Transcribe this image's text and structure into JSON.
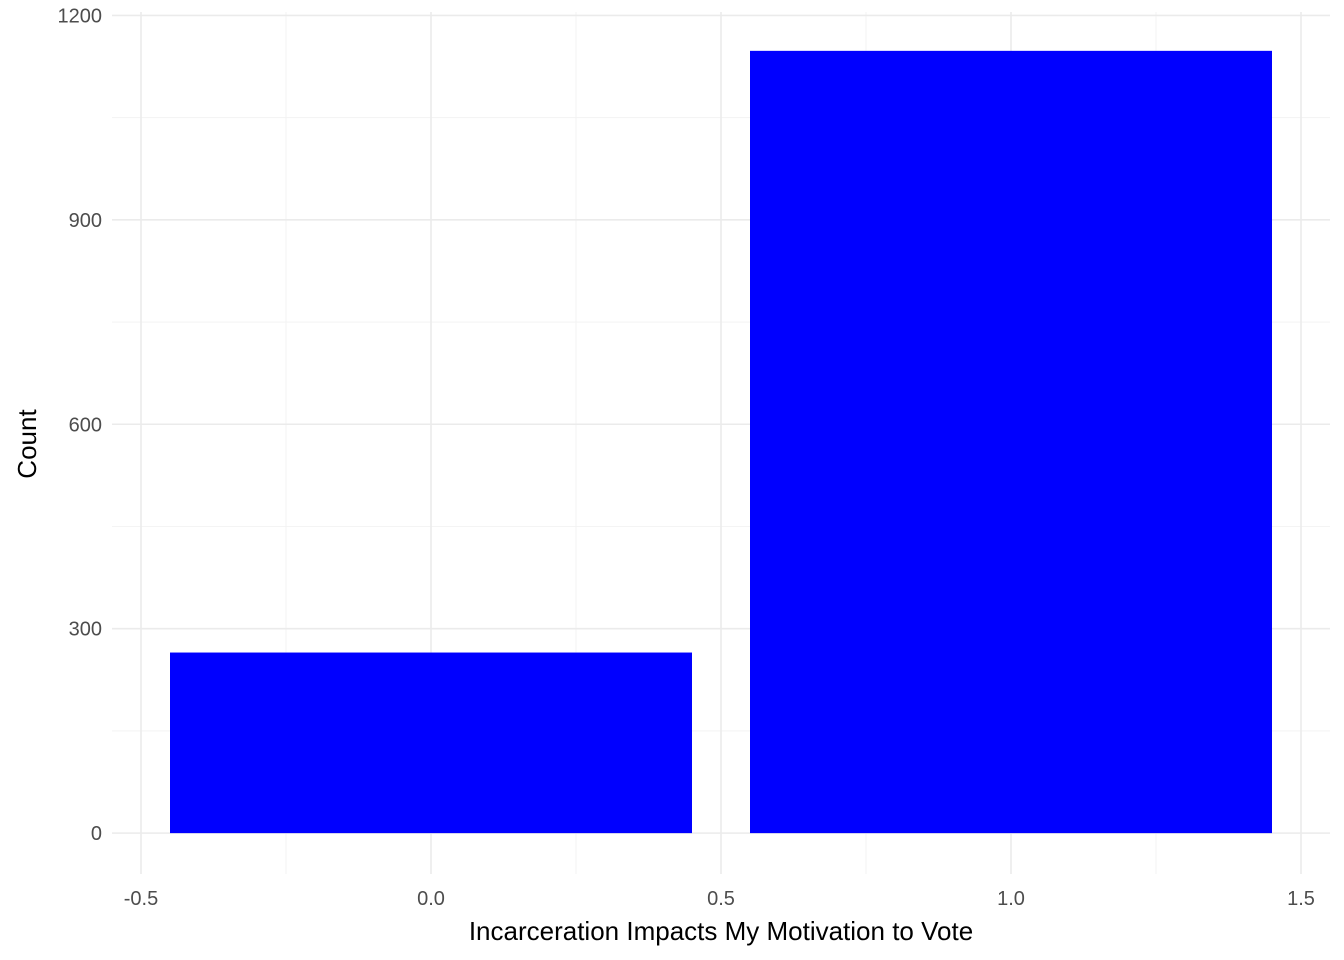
{
  "chart_data": {
    "type": "bar",
    "title": "",
    "xlabel": "Incarceration Impacts My Motivation to Vote",
    "ylabel": "Count",
    "bars": [
      {
        "x": 0,
        "value": 265,
        "width": 0.9
      },
      {
        "x": 1,
        "value": 1148,
        "width": 0.9
      }
    ],
    "bar_color": "#0000ff",
    "xlim": [
      -0.55,
      1.55
    ],
    "ylim": [
      -60,
      1205
    ],
    "x_ticks": [
      -0.5,
      0.0,
      0.5,
      1.0,
      1.5
    ],
    "x_tick_labels": [
      "-0.5",
      "0.0",
      "0.5",
      "1.0",
      "1.5"
    ],
    "y_ticks": [
      0,
      300,
      600,
      900,
      1200
    ],
    "y_tick_labels": [
      "0",
      "300",
      "600",
      "900",
      "1200"
    ],
    "grid": true,
    "theme": "minimal"
  }
}
